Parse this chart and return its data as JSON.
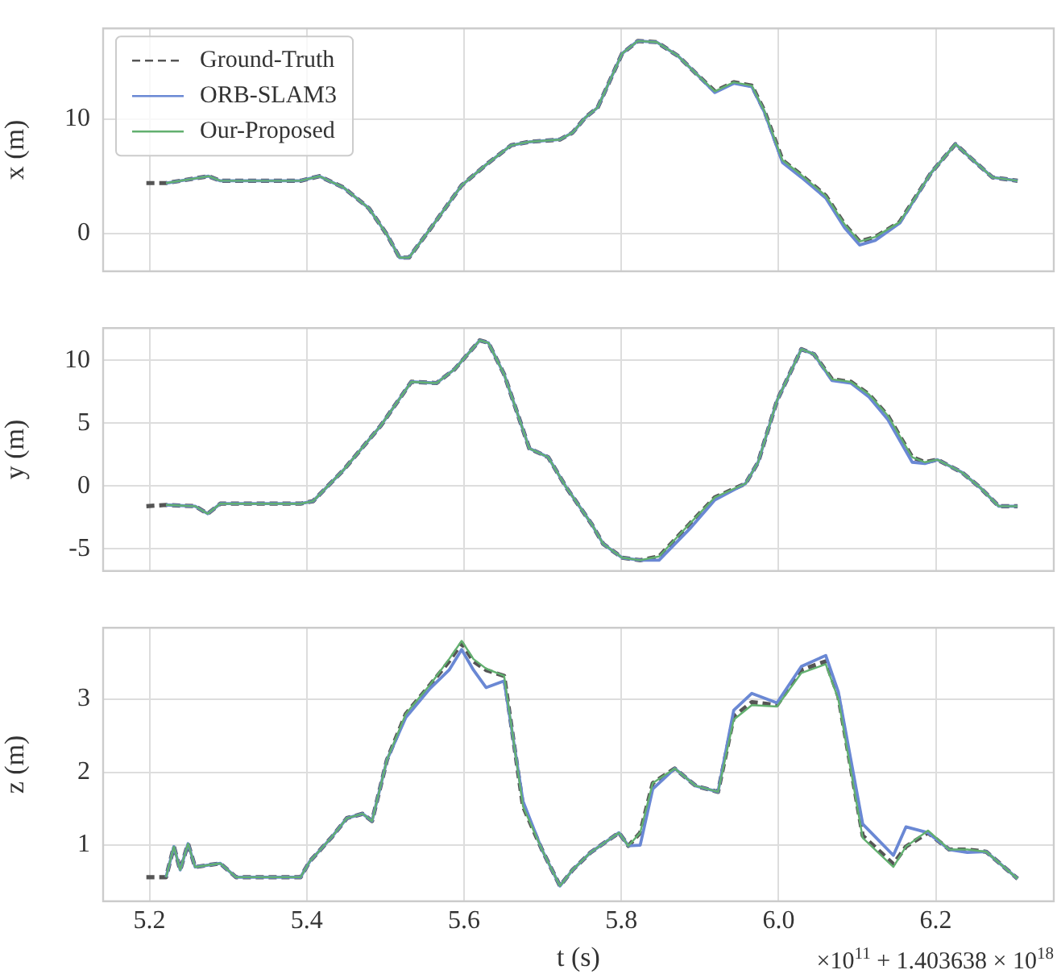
{
  "chart_data": [
    {
      "type": "line",
      "ylabel": "x (m)",
      "legend": "top left",
      "grid": true,
      "tick_labels": "y",
      "x": [
        5.196,
        5.221,
        5.275,
        5.29,
        5.305,
        5.392,
        5.416,
        5.447,
        5.479,
        5.502,
        5.518,
        5.53,
        5.557,
        5.597,
        5.628,
        5.66,
        5.683,
        5.722,
        5.738,
        5.754,
        5.77,
        5.801,
        5.821,
        5.845,
        5.872,
        5.896,
        5.919,
        5.943,
        5.966,
        5.982,
        6.005,
        6.029,
        6.06,
        6.084,
        6.103,
        6.123,
        6.154,
        6.194,
        6.225,
        6.249,
        6.272,
        6.304
      ],
      "xlim": [
        5.141,
        6.35
      ],
      "xticks": [
        5.2,
        5.4,
        5.6,
        5.8,
        6,
        6.2
      ],
      "ylim": [
        -3.3,
        17.9
      ],
      "yticks": [
        0,
        10
      ],
      "series": [
        {
          "name": "Ground-Truth",
          "color": "#555555",
          "line_style": "dashed",
          "values": [
            4.4,
            4.4,
            5.0,
            4.6,
            4.6,
            4.6,
            5.0,
            4.0,
            2.2,
            -0.1,
            -2.1,
            -2.1,
            0.4,
            4.2,
            6.0,
            7.7,
            8.0,
            8.2,
            8.8,
            10.1,
            11.0,
            15.7,
            16.8,
            16.7,
            15.5,
            13.9,
            12.4,
            13.2,
            12.9,
            10.7,
            6.4,
            5.1,
            3.3,
            0.8,
            -0.7,
            -0.3,
            1.0,
            5.3,
            7.8,
            6.3,
            4.9,
            4.6
          ]
        },
        {
          "name": "ORB-SLAM3",
          "color": "#6a88d4",
          "line_style": "solid",
          "values": [
            null,
            4.4,
            5.0,
            4.6,
            4.6,
            4.6,
            5.0,
            4.0,
            2.2,
            -0.1,
            -2.1,
            -2.1,
            0.4,
            4.2,
            6.0,
            7.7,
            8.0,
            8.2,
            8.8,
            10.1,
            11.0,
            15.7,
            16.8,
            16.7,
            15.5,
            13.9,
            12.3,
            13.1,
            12.8,
            10.6,
            6.2,
            4.9,
            3.1,
            0.5,
            -1.0,
            -0.6,
            0.9,
            5.3,
            7.8,
            6.3,
            4.9,
            4.6
          ]
        },
        {
          "name": "Our-Proposed",
          "color": "#62b06f",
          "line_style": "solid",
          "values": [
            null,
            4.4,
            5.0,
            4.6,
            4.6,
            4.6,
            5.0,
            4.0,
            2.2,
            -0.1,
            -2.1,
            -2.1,
            0.4,
            4.2,
            6.0,
            7.7,
            8.0,
            8.2,
            8.8,
            10.1,
            11.0,
            15.7,
            16.8,
            16.7,
            15.5,
            13.9,
            12.4,
            13.2,
            12.9,
            10.7,
            6.4,
            5.1,
            3.3,
            0.8,
            -0.7,
            -0.3,
            1.0,
            5.3,
            7.8,
            6.3,
            4.9,
            4.6
          ]
        }
      ]
    },
    {
      "type": "line",
      "ylabel": "y (m)",
      "legend": false,
      "grid": true,
      "tick_labels": "y",
      "x": [
        5.196,
        5.221,
        5.258,
        5.274,
        5.29,
        5.392,
        5.408,
        5.447,
        5.494,
        5.533,
        5.565,
        5.588,
        5.62,
        5.631,
        5.651,
        5.683,
        5.707,
        5.73,
        5.762,
        5.777,
        5.801,
        5.824,
        5.848,
        5.887,
        5.919,
        5.958,
        5.974,
        5.998,
        6.029,
        6.045,
        6.068,
        6.092,
        6.115,
        6.139,
        6.17,
        6.186,
        6.202,
        6.233,
        6.256,
        6.28,
        6.304
      ],
      "xlim": [
        5.141,
        6.35
      ],
      "xticks": [
        5.2,
        5.4,
        5.6,
        5.8,
        6,
        6.2
      ],
      "ylim": [
        -6.76,
        12.58
      ],
      "yticks": [
        -5,
        0,
        5,
        10
      ],
      "series": [
        {
          "color": "#555555",
          "line_style": "dashed",
          "values": [
            -1.6,
            -1.5,
            -1.6,
            -2.2,
            -1.4,
            -1.4,
            -1.2,
            1.3,
            4.8,
            8.3,
            8.2,
            9.3,
            11.6,
            11.4,
            8.9,
            3.0,
            2.3,
            -0.1,
            -3.0,
            -4.6,
            -5.7,
            -5.9,
            -5.6,
            -3.0,
            -0.9,
            0.2,
            1.9,
            6.8,
            10.9,
            10.5,
            8.5,
            8.3,
            7.3,
            5.6,
            2.3,
            1.9,
            2.1,
            1.1,
            -0.1,
            -1.6,
            -1.6
          ]
        },
        {
          "color": "#6a88d4",
          "line_style": "solid",
          "values": [
            null,
            -1.5,
            -1.6,
            -2.2,
            -1.4,
            -1.4,
            -1.2,
            1.3,
            4.8,
            8.3,
            8.2,
            9.3,
            11.6,
            11.4,
            8.9,
            3.0,
            2.3,
            -0.1,
            -3.0,
            -4.6,
            -5.7,
            -5.9,
            -5.9,
            -3.4,
            -1.1,
            0.2,
            1.9,
            6.8,
            10.9,
            10.5,
            8.4,
            8.2,
            7.1,
            5.3,
            1.9,
            1.8,
            2.1,
            1.1,
            -0.1,
            -1.6,
            -1.6
          ]
        },
        {
          "color": "#62b06f",
          "line_style": "solid",
          "values": [
            null,
            -1.5,
            -1.6,
            -2.2,
            -1.4,
            -1.4,
            -1.2,
            1.3,
            4.8,
            8.3,
            8.2,
            9.3,
            11.6,
            11.4,
            8.9,
            3.0,
            2.3,
            -0.1,
            -3.0,
            -4.6,
            -5.7,
            -5.9,
            -5.6,
            -3.0,
            -0.9,
            0.2,
            1.9,
            6.8,
            10.9,
            10.5,
            8.5,
            8.3,
            7.3,
            5.6,
            2.3,
            1.9,
            2.1,
            1.1,
            -0.1,
            -1.6,
            -1.6
          ]
        }
      ]
    },
    {
      "type": "line",
      "xlabel": "t (s)",
      "ylabel": "z (m)",
      "legend": false,
      "grid": true,
      "annotations": [
        "×10$^{11}$ + 1.403638 × 10$^{18}$"
      ],
      "x": [
        5.196,
        5.221,
        5.231,
        5.239,
        5.249,
        5.258,
        5.29,
        5.31,
        5.392,
        5.404,
        5.431,
        5.451,
        5.471,
        5.483,
        5.502,
        5.526,
        5.557,
        5.581,
        5.597,
        5.612,
        5.628,
        5.651,
        5.675,
        5.699,
        5.722,
        5.738,
        5.761,
        5.797,
        5.809,
        5.824,
        5.84,
        5.868,
        5.895,
        5.923,
        5.943,
        5.966,
        5.998,
        6.029,
        6.06,
        6.076,
        6.107,
        6.146,
        6.162,
        6.19,
        6.217,
        6.24,
        6.264,
        6.304
      ],
      "xlim": [
        5.141,
        6.35
      ],
      "xticks": [
        5.2,
        5.4,
        5.6,
        5.8,
        {
          "value": 6,
          "label": "6.0"
        },
        6.2
      ],
      "ylim": [
        0.23,
        3.98
      ],
      "yticks": [
        1,
        2,
        3
      ],
      "series": [
        {
          "color": "#555555",
          "line_style": "dashed",
          "values": [
            0.56,
            0.56,
            0.98,
            0.66,
            1.02,
            0.7,
            0.75,
            0.56,
            0.56,
            0.78,
            1.1,
            1.37,
            1.43,
            1.33,
            2.17,
            2.8,
            3.2,
            3.52,
            3.77,
            3.52,
            3.4,
            3.32,
            1.53,
            0.94,
            0.44,
            0.66,
            0.9,
            1.17,
            0.99,
            1.17,
            1.85,
            2.05,
            1.81,
            1.73,
            2.76,
            2.96,
            2.92,
            3.4,
            3.52,
            3.04,
            1.13,
            0.74,
            0.98,
            1.17,
            0.94,
            0.94,
            0.91,
            0.54
          ]
        },
        {
          "color": "#6a88d4",
          "line_style": "solid",
          "values": [
            null,
            0.56,
            0.98,
            0.66,
            1.02,
            0.7,
            0.75,
            0.56,
            0.56,
            0.78,
            1.1,
            1.37,
            1.43,
            1.33,
            2.17,
            2.75,
            3.15,
            3.4,
            3.68,
            3.4,
            3.16,
            3.25,
            1.6,
            0.94,
            0.44,
            0.66,
            0.9,
            1.17,
            0.99,
            1.0,
            1.77,
            2.05,
            1.81,
            1.73,
            2.85,
            3.08,
            2.95,
            3.45,
            3.6,
            3.1,
            1.29,
            0.86,
            1.25,
            1.17,
            0.94,
            0.9,
            0.91,
            0.54
          ]
        },
        {
          "color": "#62b06f",
          "line_style": "solid",
          "values": [
            null,
            0.56,
            0.98,
            0.66,
            1.02,
            0.7,
            0.75,
            0.56,
            0.56,
            0.78,
            1.1,
            1.37,
            1.43,
            1.33,
            2.17,
            2.8,
            3.2,
            3.55,
            3.8,
            3.55,
            3.42,
            3.32,
            1.53,
            0.94,
            0.44,
            0.66,
            0.9,
            1.17,
            0.99,
            1.17,
            1.85,
            2.05,
            1.81,
            1.73,
            2.72,
            2.92,
            2.9,
            3.36,
            3.48,
            3.0,
            1.1,
            0.7,
            0.98,
            1.2,
            0.94,
            0.94,
            0.91,
            0.54
          ]
        }
      ]
    }
  ]
}
